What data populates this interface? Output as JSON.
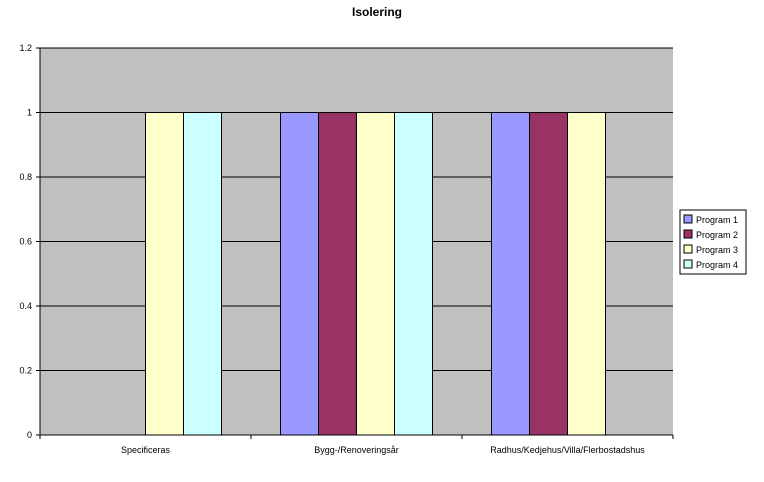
{
  "chart_data": {
    "type": "bar",
    "title": "Isolering",
    "xlabel": "",
    "ylabel": "",
    "categories": [
      "Specificeras",
      "Bygg-/Renoveringsår",
      "Radhus/Kedjehus/Villa/Flerbostadshus"
    ],
    "series": [
      {
        "name": "Program 1",
        "color": "#9999ff",
        "values": [
          0,
          1,
          1
        ]
      },
      {
        "name": "Program 2",
        "color": "#993366",
        "values": [
          0,
          1,
          1
        ]
      },
      {
        "name": "Program 3",
        "color": "#ffffcc",
        "values": [
          1,
          1,
          1
        ]
      },
      {
        "name": "Program 4",
        "color": "#ccffff",
        "values": [
          1,
          1,
          0
        ]
      }
    ],
    "ylim": [
      0,
      1.2
    ],
    "yticks": [
      "0",
      "0.2",
      "0.4",
      "0.6",
      "0.8",
      "1",
      "1.2"
    ],
    "plot_background": "#c0c0c0",
    "grid": true,
    "legend_position": "right"
  }
}
